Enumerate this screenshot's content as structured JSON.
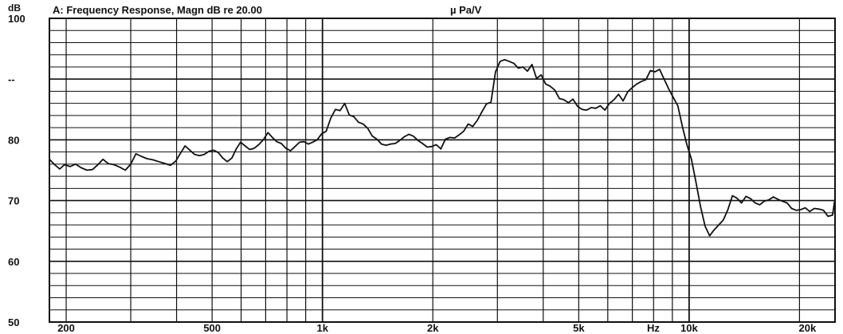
{
  "header": {
    "title": "A: Frequency Response, Magn dB re 20.00",
    "unit": "µ Pa/V"
  },
  "chart_data": {
    "type": "line",
    "y_unit_label": "dB",
    "x_unit_label": "Hz",
    "x_scale": "log",
    "xlim": [
      180,
      25000
    ],
    "ylim": [
      50,
      100
    ],
    "grid": true,
    "y_ticks": [
      {
        "v": 100,
        "label": "100"
      },
      {
        "v": 90,
        "label": "--"
      },
      {
        "v": 80,
        "label": "80"
      },
      {
        "v": 70,
        "label": "70"
      },
      {
        "v": 60,
        "label": "60"
      },
      {
        "v": 50,
        "label": "50"
      }
    ],
    "x_ticks": [
      {
        "v": 200,
        "label": "200"
      },
      {
        "v": 500,
        "label": "500"
      },
      {
        "v": 1000,
        "label": "1k"
      },
      {
        "v": 2000,
        "label": "2k"
      },
      {
        "v": 5000,
        "label": "5k"
      },
      {
        "v": 10000,
        "label": "10k"
      },
      {
        "v": 20000,
        "label": "20k"
      }
    ],
    "series": [
      {
        "color": "#111111",
        "points": [
          [
            180,
            76.8
          ],
          [
            186,
            75.9
          ],
          [
            192,
            75.2
          ],
          [
            198,
            75.9
          ],
          [
            205,
            75.6
          ],
          [
            212,
            76.0
          ],
          [
            220,
            75.4
          ],
          [
            228,
            75.0
          ],
          [
            236,
            75.1
          ],
          [
            245,
            76.0
          ],
          [
            252,
            76.8
          ],
          [
            260,
            76.1
          ],
          [
            270,
            75.9
          ],
          [
            280,
            75.5
          ],
          [
            290,
            75.0
          ],
          [
            300,
            76.0
          ],
          [
            310,
            77.7
          ],
          [
            320,
            77.3
          ],
          [
            332,
            76.9
          ],
          [
            345,
            76.7
          ],
          [
            358,
            76.4
          ],
          [
            372,
            76.1
          ],
          [
            385,
            75.8
          ],
          [
            398,
            76.5
          ],
          [
            410,
            77.8
          ],
          [
            422,
            79.0
          ],
          [
            435,
            78.3
          ],
          [
            448,
            77.6
          ],
          [
            462,
            77.4
          ],
          [
            476,
            77.6
          ],
          [
            490,
            78.1
          ],
          [
            505,
            78.3
          ],
          [
            520,
            77.9
          ],
          [
            535,
            77.0
          ],
          [
            550,
            76.4
          ],
          [
            566,
            77.0
          ],
          [
            582,
            78.5
          ],
          [
            598,
            79.6
          ],
          [
            615,
            79.0
          ],
          [
            633,
            78.4
          ],
          [
            651,
            78.6
          ],
          [
            670,
            79.2
          ],
          [
            690,
            80.0
          ],
          [
            710,
            81.2
          ],
          [
            730,
            80.4
          ],
          [
            750,
            79.7
          ],
          [
            772,
            79.4
          ],
          [
            795,
            78.6
          ],
          [
            818,
            78.2
          ],
          [
            842,
            78.9
          ],
          [
            866,
            79.6
          ],
          [
            890,
            79.7
          ],
          [
            915,
            79.3
          ],
          [
            940,
            79.6
          ],
          [
            967,
            80.0
          ],
          [
            995,
            81.0
          ],
          [
            1024,
            81.4
          ],
          [
            1054,
            83.6
          ],
          [
            1085,
            85.0
          ],
          [
            1117,
            84.8
          ],
          [
            1150,
            86.0
          ],
          [
            1183,
            84.1
          ],
          [
            1218,
            83.8
          ],
          [
            1254,
            82.9
          ],
          [
            1291,
            82.6
          ],
          [
            1329,
            81.9
          ],
          [
            1368,
            80.6
          ],
          [
            1408,
            80.1
          ],
          [
            1449,
            79.3
          ],
          [
            1491,
            79.1
          ],
          [
            1534,
            79.3
          ],
          [
            1579,
            79.4
          ],
          [
            1625,
            79.9
          ],
          [
            1672,
            80.5
          ],
          [
            1720,
            80.9
          ],
          [
            1770,
            80.6
          ],
          [
            1822,
            79.9
          ],
          [
            1875,
            79.4
          ],
          [
            1930,
            78.8
          ],
          [
            1986,
            78.9
          ],
          [
            2044,
            79.2
          ],
          [
            2103,
            78.5
          ],
          [
            2164,
            80.1
          ],
          [
            2227,
            80.4
          ],
          [
            2292,
            80.3
          ],
          [
            2358,
            80.8
          ],
          [
            2427,
            81.4
          ],
          [
            2497,
            82.6
          ],
          [
            2570,
            82.2
          ],
          [
            2644,
            83.2
          ],
          [
            2721,
            84.6
          ],
          [
            2800,
            85.9
          ],
          [
            2881,
            86.2
          ],
          [
            2965,
            91.2
          ],
          [
            3051,
            92.9
          ],
          [
            3140,
            93.2
          ],
          [
            3231,
            92.9
          ],
          [
            3325,
            92.6
          ],
          [
            3421,
            91.8
          ],
          [
            3520,
            92.0
          ],
          [
            3623,
            91.3
          ],
          [
            3728,
            92.4
          ],
          [
            3836,
            90.1
          ],
          [
            3947,
            90.7
          ],
          [
            4062,
            89.2
          ],
          [
            4180,
            88.8
          ],
          [
            4301,
            88.2
          ],
          [
            4426,
            86.8
          ],
          [
            4555,
            86.6
          ],
          [
            4687,
            86.1
          ],
          [
            4823,
            86.7
          ],
          [
            4963,
            85.5
          ],
          [
            5107,
            85.0
          ],
          [
            5255,
            84.9
          ],
          [
            5408,
            85.3
          ],
          [
            5565,
            85.2
          ],
          [
            5726,
            85.6
          ],
          [
            5893,
            84.9
          ],
          [
            6064,
            86.0
          ],
          [
            6240,
            86.6
          ],
          [
            6421,
            87.5
          ],
          [
            6607,
            86.4
          ],
          [
            6799,
            87.9
          ],
          [
            6996,
            88.6
          ],
          [
            7199,
            89.2
          ],
          [
            7408,
            89.6
          ],
          [
            7623,
            89.9
          ],
          [
            7844,
            91.4
          ],
          [
            8072,
            91.2
          ],
          [
            8306,
            91.6
          ],
          [
            8547,
            90.0
          ],
          [
            8795,
            88.4
          ],
          [
            9050,
            87.0
          ],
          [
            9313,
            85.6
          ],
          [
            9583,
            82.2
          ],
          [
            9861,
            79.2
          ],
          [
            10147,
            76.8
          ],
          [
            10441,
            73.0
          ],
          [
            10744,
            69.0
          ],
          [
            11055,
            65.8
          ],
          [
            11376,
            64.2
          ],
          [
            11706,
            65.2
          ],
          [
            12045,
            66.0
          ],
          [
            12395,
            66.8
          ],
          [
            12754,
            68.5
          ],
          [
            13124,
            70.8
          ],
          [
            13504,
            70.4
          ],
          [
            13896,
            69.6
          ],
          [
            14299,
            70.7
          ],
          [
            14714,
            70.3
          ],
          [
            15140,
            69.6
          ],
          [
            15580,
            69.3
          ],
          [
            16031,
            69.9
          ],
          [
            16496,
            70.1
          ],
          [
            16975,
            70.6
          ],
          [
            17467,
            70.2
          ],
          [
            17973,
            69.9
          ],
          [
            18495,
            69.6
          ],
          [
            19031,
            68.7
          ],
          [
            19583,
            68.4
          ],
          [
            20151,
            68.5
          ],
          [
            20735,
            68.8
          ],
          [
            21337,
            68.2
          ],
          [
            21955,
            68.7
          ],
          [
            22592,
            68.6
          ],
          [
            23247,
            68.4
          ],
          [
            23921,
            67.4
          ],
          [
            24615,
            67.6
          ],
          [
            25000,
            70.4
          ]
        ]
      }
    ]
  }
}
